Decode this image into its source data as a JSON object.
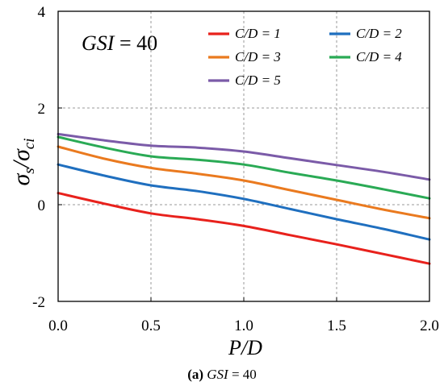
{
  "chart_data": {
    "type": "line",
    "xlabel": "P/D",
    "ylabel_parts": [
      "σ",
      "s",
      "/σ",
      "ci"
    ],
    "xlim": [
      0,
      2
    ],
    "ylim": [
      -2,
      4
    ],
    "x_ticks": [
      "0.0",
      "0.5",
      "1.0",
      "1.5",
      "2.0"
    ],
    "y_ticks": [
      "-2",
      "0",
      "2",
      "4"
    ],
    "grid": true,
    "legend_placement": "top-right, two columns",
    "annotation": {
      "label": "GSI",
      "eq": " = 40"
    },
    "caption": {
      "a": "(a)",
      "gsi": "GSI",
      "rest": " = 40"
    },
    "series": [
      {
        "name": "C/D = 1",
        "color": "#e8211c",
        "x": [
          0,
          0.25,
          0.5,
          0.75,
          1.0,
          1.25,
          1.5,
          1.75,
          2.0
        ],
        "y": [
          0.24,
          0.02,
          -0.18,
          -0.3,
          -0.44,
          -0.63,
          -0.82,
          -1.02,
          -1.22
        ]
      },
      {
        "name": "C/D = 2",
        "color": "#1f6fbf",
        "x": [
          0,
          0.25,
          0.5,
          0.75,
          1.0,
          1.25,
          1.5,
          1.75,
          2.0
        ],
        "y": [
          0.83,
          0.6,
          0.4,
          0.28,
          0.12,
          -0.09,
          -0.3,
          -0.5,
          -0.72
        ]
      },
      {
        "name": "C/D = 3",
        "color": "#ea7a1f",
        "x": [
          0,
          0.25,
          0.5,
          0.75,
          1.0,
          1.25,
          1.5,
          1.75,
          2.0
        ],
        "y": [
          1.2,
          0.95,
          0.76,
          0.64,
          0.5,
          0.3,
          0.1,
          -0.1,
          -0.28
        ]
      },
      {
        "name": "C/D = 4",
        "color": "#2aaa55",
        "x": [
          0,
          0.25,
          0.5,
          0.75,
          1.0,
          1.25,
          1.5,
          1.75,
          2.0
        ],
        "y": [
          1.4,
          1.18,
          1.0,
          0.93,
          0.83,
          0.66,
          0.5,
          0.32,
          0.13
        ]
      },
      {
        "name": "C/D = 5",
        "color": "#7b5ba8",
        "x": [
          0,
          0.25,
          0.5,
          0.75,
          1.0,
          1.25,
          1.5,
          1.75,
          2.0
        ],
        "y": [
          1.46,
          1.33,
          1.22,
          1.18,
          1.1,
          0.96,
          0.82,
          0.68,
          0.52
        ]
      }
    ]
  }
}
